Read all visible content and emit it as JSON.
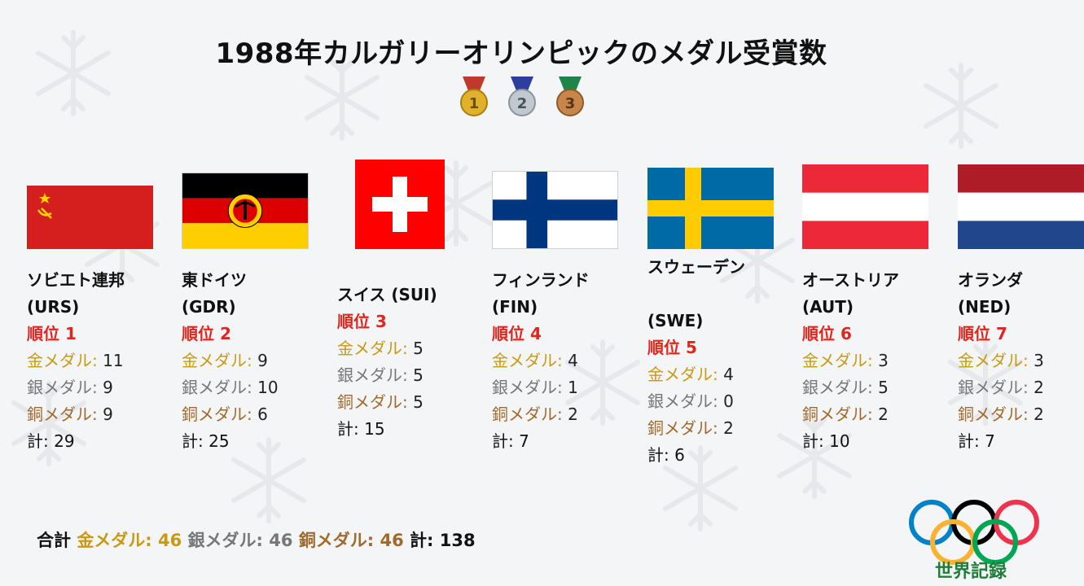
{
  "title": "1988年カルガリーオリンピックのメダル受賞数",
  "medal_icons": [
    {
      "number": "1",
      "color": "#e1b12c",
      "ribbon": "#c0392b"
    },
    {
      "number": "2",
      "color": "#aab2bd",
      "ribbon": "#2c3e9e"
    },
    {
      "number": "3",
      "color": "#c8874a",
      "ribbon": "#1e8449"
    }
  ],
  "labels": {
    "rank_prefix": "順位 ",
    "gold": "金メダル:",
    "silver": "銀メダル:",
    "bronze": "銅メダル:",
    "total": "計:"
  },
  "countries": [
    {
      "name_line1": "ソビエト連邦",
      "name_line2": "(URS)",
      "rank": "1",
      "gold": "11",
      "silver": "9",
      "bronze": "9",
      "total": "29",
      "flag": "urs-flag"
    },
    {
      "name_line1": "東ドイツ",
      "name_line2": "(GDR)",
      "rank": "2",
      "gold": "9",
      "silver": "10",
      "bronze": "6",
      "total": "25",
      "flag": "gdr-flag"
    },
    {
      "name_line1": "スイス (SUI)",
      "name_line2": "",
      "rank": "3",
      "gold": "5",
      "silver": "5",
      "bronze": "5",
      "total": "15",
      "flag": "sui-flag"
    },
    {
      "name_line1": "フィンランド",
      "name_line2": "(FIN)",
      "rank": "4",
      "gold": "4",
      "silver": "1",
      "bronze": "2",
      "total": "7",
      "flag": "fin-flag"
    },
    {
      "name_line1": "スウェーデン",
      "name_line2": "(SWE)",
      "rank": "5",
      "gold": "4",
      "silver": "0",
      "bronze": "2",
      "total": "6",
      "flag": "swe-flag"
    },
    {
      "name_line1": "オーストリア",
      "name_line2": "(AUT)",
      "rank": "6",
      "gold": "3",
      "silver": "5",
      "bronze": "2",
      "total": "10",
      "flag": "aut-flag"
    },
    {
      "name_line1": "オランダ",
      "name_line2": "(NED)",
      "rank": "7",
      "gold": "3",
      "silver": "2",
      "bronze": "2",
      "total": "7",
      "flag": "ned-flag"
    }
  ],
  "summary": {
    "label": "合計",
    "gold": "金メダル: 46",
    "silver": "銀メダル: 46",
    "bronze": "銅メダル: 46",
    "total": "計: 138"
  },
  "brand": "世界記録",
  "colors": {
    "rank": "#e0261e",
    "gold_text": "#c89a14",
    "silver_text": "#777777",
    "bronze_text": "#a06a2c"
  }
}
